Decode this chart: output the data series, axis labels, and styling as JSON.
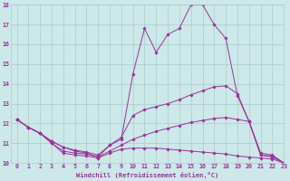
{
  "xlabel": "Windchill (Refroidissement éolien,°C)",
  "xlim": [
    -0.5,
    23
  ],
  "ylim": [
    10,
    18
  ],
  "yticks": [
    10,
    11,
    12,
    13,
    14,
    15,
    16,
    17,
    18
  ],
  "xticks": [
    0,
    1,
    2,
    3,
    4,
    5,
    6,
    7,
    8,
    9,
    10,
    11,
    12,
    13,
    14,
    15,
    16,
    17,
    18,
    19,
    20,
    21,
    22,
    23
  ],
  "bg_color": "#cce8e8",
  "grid_color": "#aacccc",
  "line_color": "#993399",
  "lines": [
    {
      "x": [
        0,
        1,
        2,
        3,
        4,
        5,
        6,
        7,
        8,
        9,
        10,
        11,
        12,
        13,
        14,
        15,
        16,
        17,
        18,
        19,
        20,
        21,
        22,
        23
      ],
      "y": [
        12.2,
        11.8,
        11.5,
        11.1,
        10.8,
        10.6,
        10.5,
        10.3,
        10.9,
        11.2,
        14.5,
        16.8,
        15.6,
        16.5,
        16.8,
        18.0,
        18.0,
        17.0,
        16.3,
        13.4,
        12.1,
        10.5,
        10.4,
        10.0
      ]
    },
    {
      "x": [
        0,
        1,
        2,
        3,
        4,
        5,
        6,
        7,
        8,
        9,
        10,
        11,
        12,
        13,
        14,
        15,
        16,
        17,
        18,
        19,
        20,
        21,
        22,
        23
      ],
      "y": [
        12.2,
        11.8,
        11.5,
        11.1,
        10.8,
        10.65,
        10.55,
        10.4,
        10.9,
        11.3,
        12.4,
        12.7,
        12.85,
        13.0,
        13.2,
        13.45,
        13.65,
        13.85,
        13.9,
        13.5,
        12.1,
        10.4,
        10.35,
        10.0
      ]
    },
    {
      "x": [
        0,
        1,
        2,
        3,
        4,
        5,
        6,
        7,
        8,
        9,
        10,
        11,
        12,
        13,
        14,
        15,
        16,
        17,
        18,
        19,
        20,
        21,
        22,
        23
      ],
      "y": [
        12.2,
        11.8,
        11.5,
        11.0,
        10.6,
        10.5,
        10.45,
        10.3,
        10.6,
        10.9,
        11.2,
        11.4,
        11.6,
        11.75,
        11.9,
        12.05,
        12.15,
        12.25,
        12.3,
        12.2,
        12.1,
        10.4,
        10.3,
        10.0
      ]
    },
    {
      "x": [
        0,
        1,
        2,
        3,
        4,
        5,
        6,
        7,
        8,
        9,
        10,
        11,
        12,
        13,
        14,
        15,
        16,
        17,
        18,
        19,
        20,
        21,
        22,
        23
      ],
      "y": [
        12.2,
        11.8,
        11.5,
        11.0,
        10.5,
        10.4,
        10.35,
        10.25,
        10.5,
        10.7,
        10.75,
        10.75,
        10.75,
        10.7,
        10.65,
        10.6,
        10.55,
        10.5,
        10.45,
        10.35,
        10.3,
        10.25,
        10.2,
        10.0
      ]
    }
  ]
}
